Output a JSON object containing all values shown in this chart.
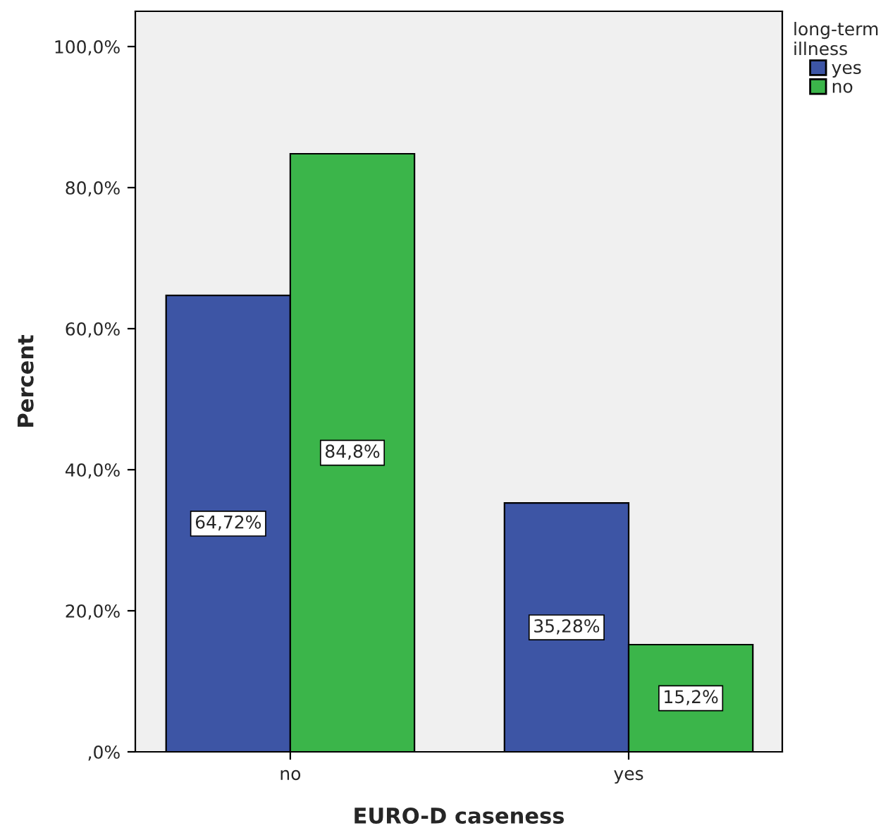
{
  "chart_data": {
    "type": "bar",
    "xlabel": "EURO-D caseness",
    "ylabel": "Percent",
    "legend_title": "long-term\nillness",
    "categories": [
      "no",
      "yes"
    ],
    "series": [
      {
        "name": "yes",
        "color": "#3d55a5",
        "values": [
          64.72,
          35.28
        ],
        "value_labels": [
          "64,72%",
          "35,28%"
        ]
      },
      {
        "name": "no",
        "color": "#3bb54a",
        "values": [
          84.8,
          15.2
        ],
        "value_labels": [
          "84,8%",
          "15,2%"
        ]
      }
    ],
    "ylim": [
      0,
      105
    ],
    "yticks": [
      {
        "value": 0,
        "label": ",0%"
      },
      {
        "value": 20,
        "label": "20,0%"
      },
      {
        "value": 40,
        "label": "40,0%"
      },
      {
        "value": 60,
        "label": "60,0%"
      },
      {
        "value": 80,
        "label": "80,0%"
      },
      {
        "value": 100,
        "label": "100,0%"
      }
    ],
    "legend": "top right",
    "grid": false
  }
}
